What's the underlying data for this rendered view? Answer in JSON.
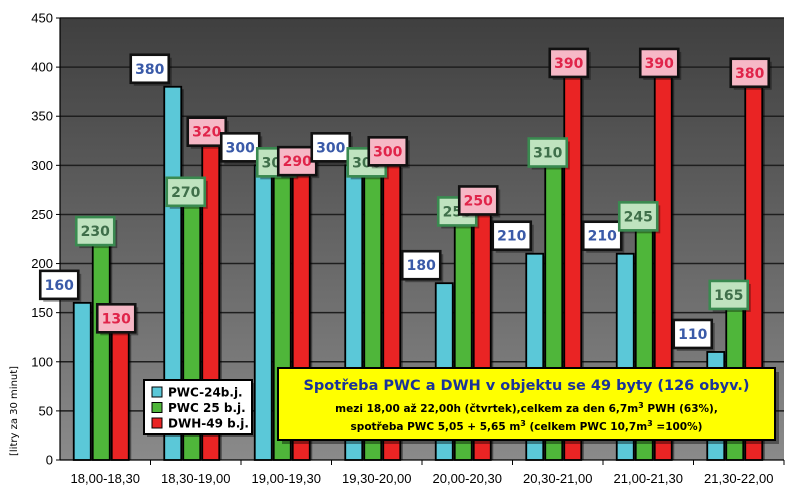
{
  "chart_data": {
    "type": "bar",
    "ylabel": "[litry za 30 minut]",
    "xlabel": "",
    "ylim": [
      0,
      450
    ],
    "yticks": [
      0,
      50,
      100,
      150,
      200,
      250,
      300,
      350,
      400,
      450
    ],
    "grid": true,
    "legend_position": "bottom-left",
    "categories": [
      "18,00-18,30",
      "18,30-19,00",
      "19,00-19,30",
      "19,30-20,00",
      "20,00-20,30",
      "20,30-21,00",
      "21,00-21,30",
      "21,30-22,00"
    ],
    "series": [
      {
        "name": "PWC-24b.j.",
        "color": "#5bc8d8",
        "label_border": "#111111",
        "label_fill": "#ffffff",
        "label_text_color": "#3a5aa8",
        "values": [
          160,
          380,
          300,
          300,
          180,
          210,
          210,
          110
        ]
      },
      {
        "name": "PWC 25 b.j.",
        "color": "#4fb63a",
        "label_border": "#3a8a50",
        "label_fill": "#bfe3bf",
        "label_text_color": "#3f6f4a",
        "values": [
          230,
          270,
          300,
          300,
          250,
          310,
          245,
          165
        ]
      },
      {
        "name": "DWH-49 b.j.",
        "color": "#ea2424",
        "label_border": "#111111",
        "label_fill": "#f6b8c6",
        "label_text_color": "#e0244a",
        "values": [
          130,
          320,
          290,
          300,
          250,
          390,
          390,
          380
        ]
      }
    ],
    "annotation": {
      "title": "Spotřeba PWC a DWH v objektu se 49 byty (126 obyv.)",
      "line1_before": "mezi 18,00 až 22,00h  (čtvrtek),celkem za den 6,7m",
      "line1_sup": "3",
      "line1_after": " PWH (63%),",
      "line2_before": "spotřeba PWC  5,05 + 5,65 m",
      "line2_sup": "3",
      "line2_mid": " (celkem PWC 10,7m",
      "line2_sup2": "3",
      "line2_after": " =100%)",
      "box_color": "#ffff00"
    },
    "colors": {
      "plot_bg": "#3f3f3f",
      "plot_bg_gradient_to": "#8a8a8a",
      "grid": "#1e1e1e"
    }
  }
}
